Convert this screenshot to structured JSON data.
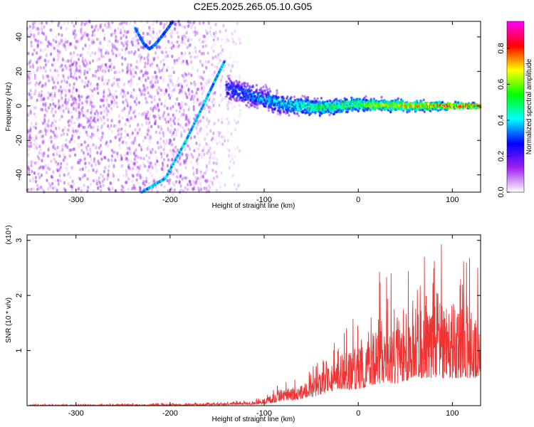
{
  "title": "C2E5.2025.265.05.10.G05",
  "chart_data": [
    {
      "type": "heatmap",
      "xlabel": "Height of straight line (km)",
      "ylabel": "Frequency (Hz)",
      "xlim": [
        -352,
        130
      ],
      "ylim": [
        -50,
        49
      ],
      "xticks": [
        -300,
        -200,
        -100,
        0,
        100
      ],
      "yticks": [
        -40,
        -20,
        0,
        20,
        40
      ],
      "colorbar": {
        "label": "Normalized spectral amplitude",
        "range": [
          0,
          0.95
        ],
        "ticks": [
          0.0,
          0.2,
          0.4,
          0.6,
          0.8
        ],
        "colormap": [
          "#ffffff",
          "#a020f0",
          "#0000ff",
          "#00ffff",
          "#00ff00",
          "#ffff00",
          "#ff0000",
          "#ff00ff"
        ]
      },
      "features": [
        {
          "name": "noise-field",
          "x": [
            -352,
            -125
          ],
          "y": [
            -50,
            49
          ],
          "amplitude": 0.15
        },
        {
          "name": "doppler-streak",
          "points": [
            [
              -230,
              -50
            ],
            [
              -205,
              -42
            ],
            [
              -183,
              -20
            ],
            [
              -165,
              0
            ],
            [
              -152,
              15
            ],
            [
              -142,
              26
            ]
          ],
          "amplitude": 0.35
        },
        {
          "name": "hook-feature",
          "points": [
            [
              -237,
              45
            ],
            [
              -228,
              36
            ],
            [
              -222,
              33
            ],
            [
              -215,
              36
            ],
            [
              -205,
              43
            ],
            [
              -197,
              49
            ]
          ],
          "amplitude": 0.3
        },
        {
          "name": "signal-band",
          "points": [
            [
              -140,
              10
            ],
            [
              -125,
              8
            ],
            [
              -100,
              4
            ],
            [
              -80,
              1
            ],
            [
              -60,
              0
            ],
            [
              -40,
              -1
            ],
            [
              -20,
              0
            ],
            [
              0,
              1
            ],
            [
              20,
              0.5
            ],
            [
              60,
              0
            ],
            [
              100,
              0
            ],
            [
              130,
              0
            ]
          ],
          "amplitude_start": 0.3,
          "amplitude_end": 0.9
        }
      ]
    },
    {
      "type": "line",
      "xlabel": "Height of straight line (km)",
      "ylabel": "SNR (10 * v/v)",
      "yscale_label": "(x10⁴)",
      "xlim": [
        -352,
        130
      ],
      "ylim": [
        0,
        3.1
      ],
      "xticks": [
        -300,
        -200,
        -100,
        0,
        100
      ],
      "yticks": [
        1,
        2,
        3
      ],
      "color": "#ee3333",
      "series": [
        {
          "x": [
            -350,
            -300,
            -250,
            -200,
            -150,
            -125,
            -110,
            -100,
            -90,
            -85,
            -80,
            -75,
            -70,
            -60,
            -50,
            -40,
            -30,
            -20,
            -10,
            0,
            10,
            20,
            30,
            40,
            50,
            60,
            70,
            80,
            90,
            100,
            110,
            120,
            130
          ],
          "y_peak": [
            0.03,
            0.03,
            0.04,
            0.05,
            0.06,
            0.1,
            0.12,
            0.2,
            0.35,
            0.45,
            0.5,
            0.4,
            0.45,
            0.6,
            0.7,
            0.9,
            1.1,
            1.4,
            1.6,
            1.9,
            2.2,
            2.5,
            2.6,
            2.5,
            2.6,
            2.7,
            2.8,
            2.9,
            3.0,
            3.05,
            2.7,
            2.8,
            2.5
          ],
          "y_floor": [
            0.0,
            0.0,
            0.0,
            0.0,
            0.01,
            0.02,
            0.02,
            0.03,
            0.05,
            0.08,
            0.1,
            0.1,
            0.1,
            0.12,
            0.15,
            0.2,
            0.25,
            0.3,
            0.3,
            0.3,
            0.35,
            0.4,
            0.4,
            0.4,
            0.45,
            0.5,
            0.5,
            0.5,
            0.5,
            0.5,
            0.5,
            0.5,
            0.5
          ]
        }
      ]
    }
  ]
}
